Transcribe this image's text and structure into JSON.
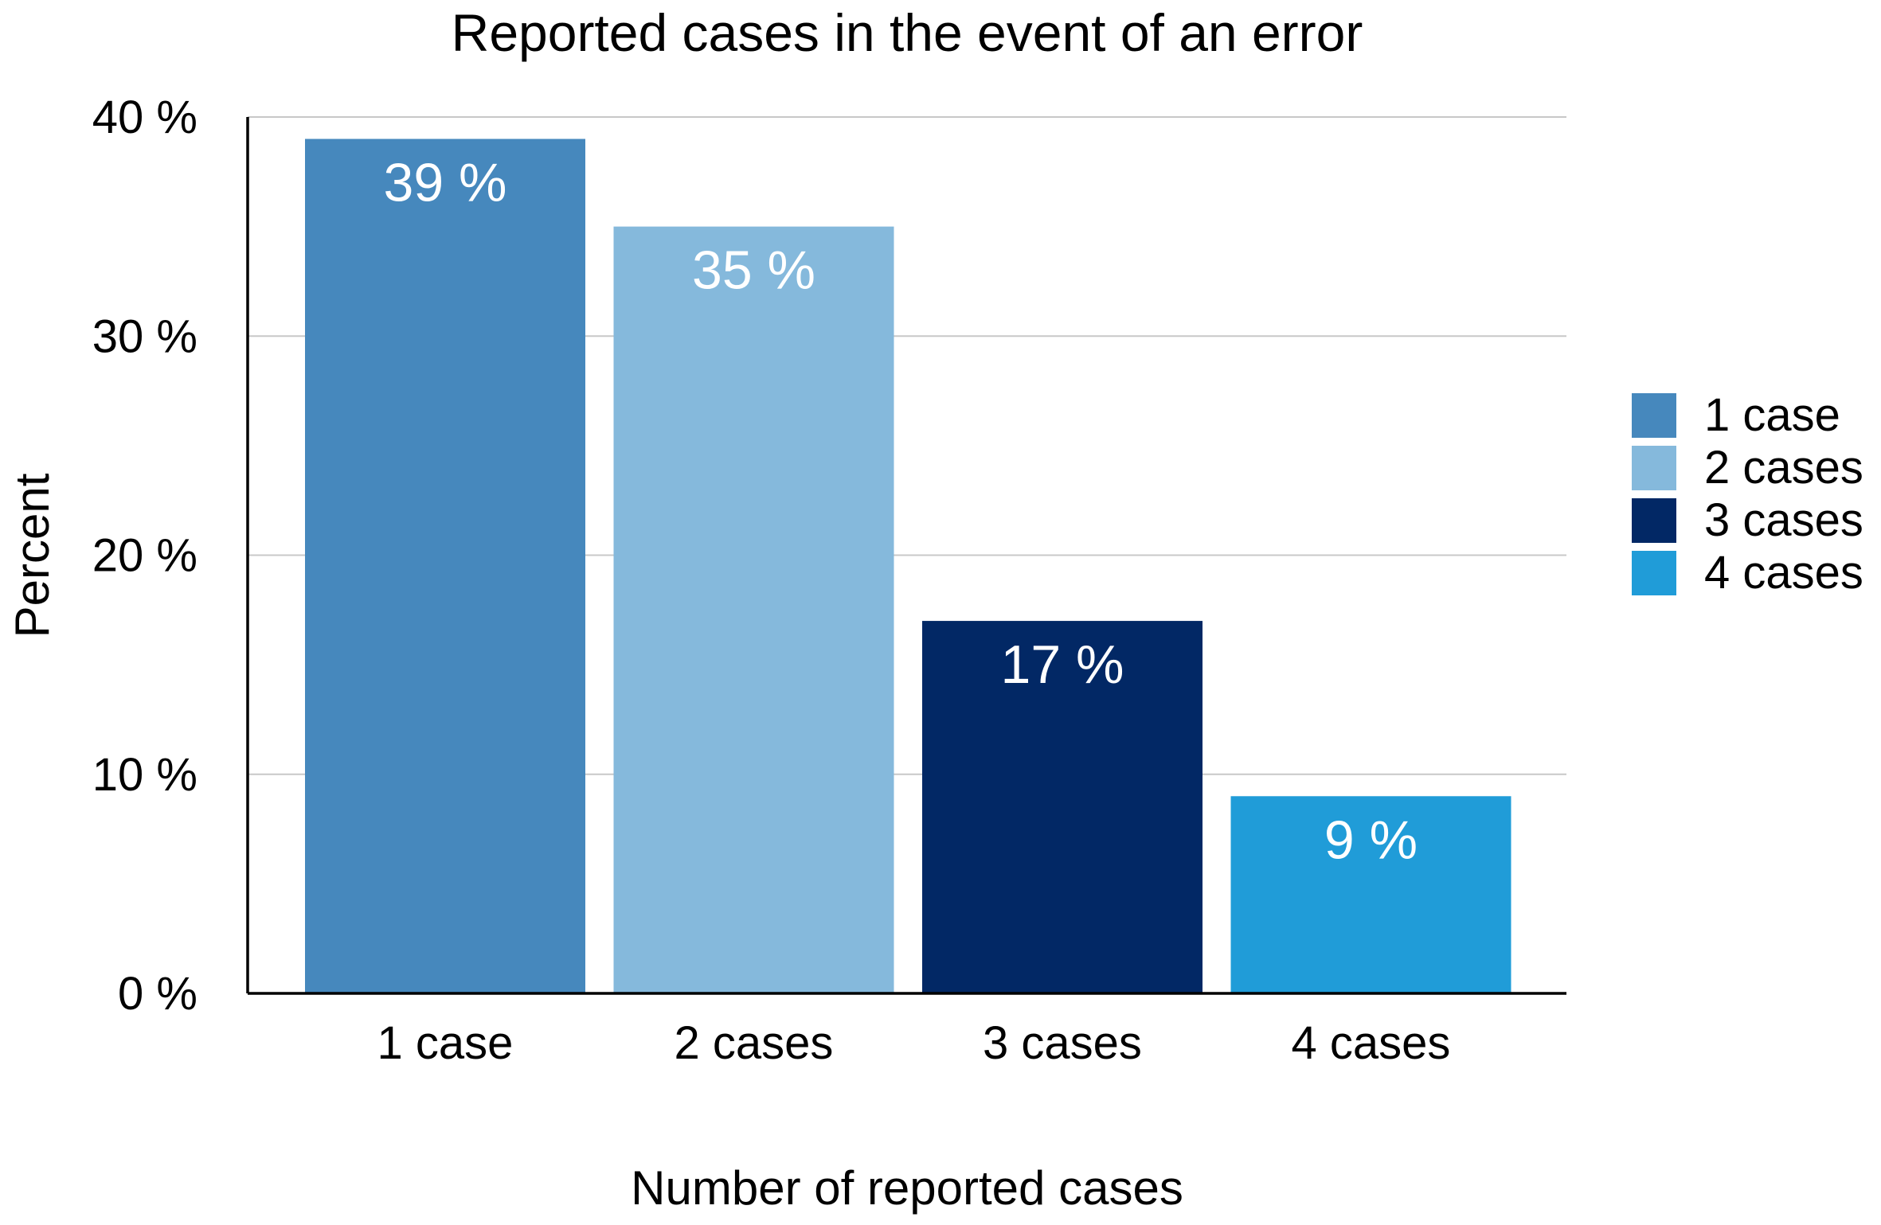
{
  "chart_data": {
    "type": "bar",
    "title": "Reported cases in the event of an error",
    "xlabel": "Number of reported cases",
    "ylabel": "Percent",
    "categories": [
      "1 case",
      "2 cases",
      "3 cases",
      "4 cases"
    ],
    "values": [
      39,
      35,
      17,
      9
    ],
    "value_labels": [
      "39 %",
      "35 %",
      "17 %",
      "9 %"
    ],
    "colors": [
      "#4688bd",
      "#85b9dc",
      "#022865",
      "#209cd8"
    ],
    "ylim": [
      0,
      40
    ],
    "yticks": [
      0,
      10,
      20,
      30,
      40
    ],
    "ytick_labels": [
      "0 %",
      "10 %",
      "20 %",
      "30 %",
      "40 %"
    ],
    "grid": true,
    "legend": {
      "position": "right",
      "entries": [
        "1 case",
        "2 cases",
        "3 cases",
        "4 cases"
      ]
    }
  }
}
